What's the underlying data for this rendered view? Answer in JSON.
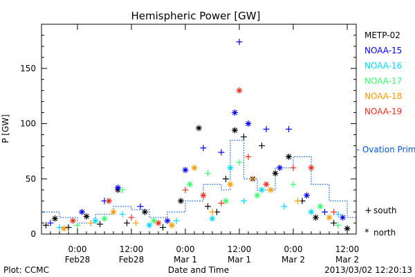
{
  "footer": {
    "left": "Plot: CCMC",
    "right": "2013/03/02 12:20:13"
  },
  "chart_data": {
    "type": "scatter",
    "title": "Hemispheric Power [GW]",
    "xlabel": "Date and Time",
    "ylabel": "P [GW]",
    "ylim": [
      0,
      190
    ],
    "xlim": [
      "2013-02-27 16:00",
      "2013-03-02 14:00"
    ],
    "y_ticks": [
      0,
      50,
      100,
      150
    ],
    "x_ticks": [
      {
        "t": "2013-02-28 00:00",
        "line1": "0:00",
        "line2": "Feb28"
      },
      {
        "t": "2013-02-28 12:00",
        "line1": "12:00",
        "line2": "Feb28"
      },
      {
        "t": "2013-03-01 00:00",
        "line1": "0:00",
        "line2": "Mar 1"
      },
      {
        "t": "2013-03-01 12:00",
        "line1": "12:00",
        "line2": "Mar 1"
      },
      {
        "t": "2013-03-02 00:00",
        "line1": "0:00",
        "line2": "Mar 2"
      },
      {
        "t": "2013-03-02 12:00",
        "line1": "12:00",
        "line2": "Mar 2"
      }
    ],
    "grid": false,
    "legend_placement": "right",
    "symbol_legend": [
      {
        "symbol": "+",
        "label": "south"
      },
      {
        "symbol": "*",
        "label": "north"
      }
    ],
    "series": [
      {
        "name": "METP-02",
        "color": "#000000",
        "points": [
          {
            "t": "2013-02-27 17:00",
            "y": 8,
            "hemi": "south"
          },
          {
            "t": "2013-02-27 19:00",
            "y": 14,
            "hemi": "north"
          },
          {
            "t": "2013-02-27 22:00",
            "y": 6,
            "hemi": "south"
          },
          {
            "t": "2013-02-28 02:00",
            "y": 16,
            "hemi": "north"
          },
          {
            "t": "2013-02-28 05:00",
            "y": 9,
            "hemi": "south"
          },
          {
            "t": "2013-02-28 09:00",
            "y": 40,
            "hemi": "north"
          },
          {
            "t": "2013-02-28 11:00",
            "y": 10,
            "hemi": "south"
          },
          {
            "t": "2013-02-28 15:00",
            "y": 20,
            "hemi": "north"
          },
          {
            "t": "2013-02-28 19:00",
            "y": 6,
            "hemi": "south"
          },
          {
            "t": "2013-02-28 23:00",
            "y": 30,
            "hemi": "north"
          },
          {
            "t": "2013-03-01 03:00",
            "y": 96,
            "hemi": "north"
          },
          {
            "t": "2013-03-01 05:00",
            "y": 25,
            "hemi": "south"
          },
          {
            "t": "2013-03-01 07:00",
            "y": 20,
            "hemi": "south"
          },
          {
            "t": "2013-03-01 09:00",
            "y": 50,
            "hemi": "south"
          },
          {
            "t": "2013-03-01 11:00",
            "y": 94,
            "hemi": "north"
          },
          {
            "t": "2013-03-01 13:00",
            "y": 88,
            "hemi": "south"
          },
          {
            "t": "2013-03-01 15:00",
            "y": 50,
            "hemi": "north"
          },
          {
            "t": "2013-03-01 17:00",
            "y": 80,
            "hemi": "south"
          },
          {
            "t": "2013-03-01 20:00",
            "y": 55,
            "hemi": "north"
          },
          {
            "t": "2013-03-01 23:00",
            "y": 70,
            "hemi": "north"
          },
          {
            "t": "2013-03-02 02:00",
            "y": 30,
            "hemi": "south"
          },
          {
            "t": "2013-03-02 05:00",
            "y": 15,
            "hemi": "north"
          },
          {
            "t": "2013-03-02 09:00",
            "y": 10,
            "hemi": "south"
          },
          {
            "t": "2013-03-02 12:00",
            "y": 5,
            "hemi": "north"
          }
        ]
      },
      {
        "name": "NOAA-15",
        "color": "#0000ff",
        "points": [
          {
            "t": "2013-02-27 18:00",
            "y": 10,
            "hemi": "south"
          },
          {
            "t": "2013-02-28 01:00",
            "y": 20,
            "hemi": "north"
          },
          {
            "t": "2013-02-28 06:00",
            "y": 30,
            "hemi": "south"
          },
          {
            "t": "2013-02-28 09:00",
            "y": 42,
            "hemi": "north"
          },
          {
            "t": "2013-02-28 14:00",
            "y": 25,
            "hemi": "south"
          },
          {
            "t": "2013-02-28 20:00",
            "y": 12,
            "hemi": "north"
          },
          {
            "t": "2013-03-01 00:00",
            "y": 58,
            "hemi": "north"
          },
          {
            "t": "2013-03-01 04:00",
            "y": 78,
            "hemi": "south"
          },
          {
            "t": "2013-03-01 08:00",
            "y": 74,
            "hemi": "south"
          },
          {
            "t": "2013-03-01 11:00",
            "y": 110,
            "hemi": "north"
          },
          {
            "t": "2013-03-01 12:00",
            "y": 174,
            "hemi": "south"
          },
          {
            "t": "2013-03-01 14:00",
            "y": 100,
            "hemi": "north"
          },
          {
            "t": "2013-03-01 18:00",
            "y": 95,
            "hemi": "south"
          },
          {
            "t": "2013-03-01 21:00",
            "y": 60,
            "hemi": "north"
          },
          {
            "t": "2013-03-01 23:00",
            "y": 95,
            "hemi": "south"
          },
          {
            "t": "2013-03-02 03:00",
            "y": 35,
            "hemi": "north"
          },
          {
            "t": "2013-03-02 07:00",
            "y": 20,
            "hemi": "south"
          },
          {
            "t": "2013-03-02 11:00",
            "y": 15,
            "hemi": "north"
          }
        ]
      },
      {
        "name": "NOAA-16",
        "color": "#00d8ff",
        "points": [
          {
            "t": "2013-02-27 20:00",
            "y": 6,
            "hemi": "south"
          },
          {
            "t": "2013-02-28 04:00",
            "y": 12,
            "hemi": "north"
          },
          {
            "t": "2013-02-28 10:00",
            "y": 18,
            "hemi": "south"
          },
          {
            "t": "2013-02-28 16:00",
            "y": 8,
            "hemi": "north"
          },
          {
            "t": "2013-02-28 22:00",
            "y": 12,
            "hemi": "south"
          },
          {
            "t": "2013-03-01 06:00",
            "y": 14,
            "hemi": "north"
          },
          {
            "t": "2013-03-01 10:00",
            "y": 60,
            "hemi": "north"
          },
          {
            "t": "2013-03-01 13:00",
            "y": 30,
            "hemi": "south"
          },
          {
            "t": "2013-03-01 17:00",
            "y": 40,
            "hemi": "north"
          },
          {
            "t": "2013-03-01 22:00",
            "y": 25,
            "hemi": "south"
          },
          {
            "t": "2013-03-02 04:00",
            "y": 20,
            "hemi": "north"
          },
          {
            "t": "2013-03-02 10:00",
            "y": 18,
            "hemi": "south"
          }
        ]
      },
      {
        "name": "NOAA-17",
        "color": "#33ff66",
        "points": [
          {
            "t": "2013-02-28 00:00",
            "y": 8,
            "hemi": "south"
          },
          {
            "t": "2013-02-28 06:00",
            "y": 14,
            "hemi": "north"
          },
          {
            "t": "2013-02-28 10:00",
            "y": 40,
            "hemi": "south"
          },
          {
            "t": "2013-02-28 17:00",
            "y": 12,
            "hemi": "north"
          },
          {
            "t": "2013-03-01 01:00",
            "y": 45,
            "hemi": "north"
          },
          {
            "t": "2013-03-01 05:00",
            "y": 55,
            "hemi": "south"
          },
          {
            "t": "2013-03-01 09:00",
            "y": 30,
            "hemi": "north"
          },
          {
            "t": "2013-03-01 12:00",
            "y": 65,
            "hemi": "south"
          },
          {
            "t": "2013-03-01 16:00",
            "y": 35,
            "hemi": "north"
          },
          {
            "t": "2013-03-02 00:00",
            "y": 45,
            "hemi": "south"
          },
          {
            "t": "2013-03-02 06:00",
            "y": 25,
            "hemi": "north"
          },
          {
            "t": "2013-03-02 10:00",
            "y": 8,
            "hemi": "south"
          }
        ]
      },
      {
        "name": "NOAA-18",
        "color": "#ff9900",
        "points": [
          {
            "t": "2013-02-27 21:00",
            "y": 5,
            "hemi": "north"
          },
          {
            "t": "2013-02-28 03:00",
            "y": 10,
            "hemi": "south"
          },
          {
            "t": "2013-02-28 08:00",
            "y": 20,
            "hemi": "north"
          },
          {
            "t": "2013-02-28 13:00",
            "y": 10,
            "hemi": "south"
          },
          {
            "t": "2013-02-28 21:00",
            "y": 8,
            "hemi": "north"
          },
          {
            "t": "2013-03-01 02:00",
            "y": 60,
            "hemi": "north"
          },
          {
            "t": "2013-03-01 06:00",
            "y": 20,
            "hemi": "south"
          },
          {
            "t": "2013-03-01 10:00",
            "y": 45,
            "hemi": "north"
          },
          {
            "t": "2013-03-01 15:00",
            "y": 50,
            "hemi": "south"
          },
          {
            "t": "2013-03-01 19:00",
            "y": 40,
            "hemi": "north"
          },
          {
            "t": "2013-03-02 01:00",
            "y": 30,
            "hemi": "south"
          },
          {
            "t": "2013-03-02 08:00",
            "y": 15,
            "hemi": "north"
          }
        ]
      },
      {
        "name": "NOAA-19",
        "color": "#ee2a1a",
        "points": [
          {
            "t": "2013-02-27 23:00",
            "y": 12,
            "hemi": "north"
          },
          {
            "t": "2013-02-28 07:00",
            "y": 30,
            "hemi": "north"
          },
          {
            "t": "2013-02-28 12:00",
            "y": 15,
            "hemi": "south"
          },
          {
            "t": "2013-02-28 18:00",
            "y": 10,
            "hemi": "north"
          },
          {
            "t": "2013-03-01 00:00",
            "y": 40,
            "hemi": "south"
          },
          {
            "t": "2013-03-01 04:00",
            "y": 35,
            "hemi": "north"
          },
          {
            "t": "2013-03-01 08:00",
            "y": 28,
            "hemi": "south"
          },
          {
            "t": "2013-03-01 12:00",
            "y": 130,
            "hemi": "north"
          },
          {
            "t": "2013-03-01 14:00",
            "y": 70,
            "hemi": "south"
          },
          {
            "t": "2013-03-01 18:00",
            "y": 45,
            "hemi": "north"
          },
          {
            "t": "2013-03-02 00:00",
            "y": 60,
            "hemi": "south"
          },
          {
            "t": "2013-03-02 04:00",
            "y": 60,
            "hemi": "north"
          },
          {
            "t": "2013-03-02 09:00",
            "y": 20,
            "hemi": "south"
          }
        ]
      }
    ],
    "line_series": {
      "name": "– Ovation Prime HPI",
      "color": "#0055dd",
      "style": "dotted-step",
      "points": [
        {
          "t": "2013-02-27 16:00",
          "y": 20
        },
        {
          "t": "2013-02-27 20:00",
          "y": 15
        },
        {
          "t": "2013-02-28 00:00",
          "y": 10
        },
        {
          "t": "2013-02-28 04:00",
          "y": 18
        },
        {
          "t": "2013-02-28 08:00",
          "y": 25
        },
        {
          "t": "2013-02-28 12:00",
          "y": 22
        },
        {
          "t": "2013-02-28 16:00",
          "y": 15
        },
        {
          "t": "2013-02-28 20:00",
          "y": 20
        },
        {
          "t": "2013-03-01 00:00",
          "y": 30
        },
        {
          "t": "2013-03-01 04:00",
          "y": 45
        },
        {
          "t": "2013-03-01 08:00",
          "y": 40
        },
        {
          "t": "2013-03-01 10:00",
          "y": 85
        },
        {
          "t": "2013-03-01 13:00",
          "y": 50
        },
        {
          "t": "2013-03-01 16:00",
          "y": 40
        },
        {
          "t": "2013-03-01 20:00",
          "y": 60
        },
        {
          "t": "2013-03-02 00:00",
          "y": 70
        },
        {
          "t": "2013-03-02 04:00",
          "y": 45
        },
        {
          "t": "2013-03-02 08:00",
          "y": 30
        },
        {
          "t": "2013-03-02 12:00",
          "y": 15
        }
      ]
    }
  }
}
